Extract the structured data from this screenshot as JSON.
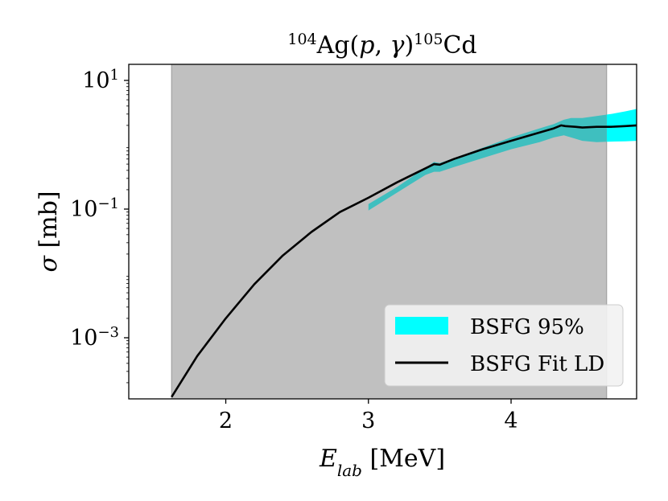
{
  "chart_data": {
    "type": "line",
    "title": {
      "pre_sup": "104",
      "main": "Ag(",
      "p": "p",
      "sep": ", ",
      "gamma": "γ",
      "close": ")",
      "post_sup": "105",
      "end": "Cd"
    },
    "xlabel": {
      "var": "E",
      "sub": "lab",
      "unit": " [MeV]"
    },
    "ylabel": {
      "var": "σ",
      "unit": " [mb]"
    },
    "xlim": [
      1.32,
      4.88
    ],
    "ylim_log10": [
      -3.95,
      1.25
    ],
    "y_scale": "log",
    "x_ticks": [
      {
        "value": 2,
        "label": "2"
      },
      {
        "value": 3,
        "label": "3"
      },
      {
        "value": 4,
        "label": "4"
      }
    ],
    "y_ticks": [
      {
        "exp": 1,
        "base": "10",
        "sup": "1"
      },
      {
        "exp": -1,
        "base": "10",
        "sup": "−1"
      },
      {
        "exp": -3,
        "base": "10",
        "sup": "−3"
      }
    ],
    "shaded_region": {
      "x": [
        1.62,
        4.67
      ],
      "color": "#c0c0c0"
    },
    "series": [
      {
        "name": "BSFG 95%",
        "kind": "band",
        "color": "#00ffff",
        "overlap_color": "#3fbfbf",
        "x": [
          3.0,
          3.2,
          3.4,
          3.46,
          3.5,
          3.6,
          3.8,
          4.0,
          4.2,
          4.3,
          4.37,
          4.42,
          4.5,
          4.6,
          4.7,
          4.8,
          4.88
        ],
        "lower": [
          0.095,
          0.18,
          0.34,
          0.38,
          0.38,
          0.45,
          0.62,
          0.85,
          1.1,
          1.3,
          1.4,
          1.3,
          1.15,
          1.1,
          1.12,
          1.13,
          1.15
        ],
        "upper": [
          0.12,
          0.22,
          0.44,
          0.54,
          0.52,
          0.62,
          0.9,
          1.3,
          1.8,
          2.1,
          2.45,
          2.6,
          2.6,
          2.8,
          3.0,
          3.3,
          3.6
        ]
      },
      {
        "name": "BSFG Fit LD",
        "kind": "line",
        "color": "#000000",
        "x": [
          1.62,
          1.8,
          2.0,
          2.2,
          2.4,
          2.6,
          2.8,
          3.0,
          3.2,
          3.4,
          3.46,
          3.5,
          3.6,
          3.8,
          4.0,
          4.2,
          4.3,
          4.35,
          4.38,
          4.45,
          4.5,
          4.6,
          4.7,
          4.8,
          4.88
        ],
        "y": [
          0.00012,
          0.00052,
          0.002,
          0.0068,
          0.019,
          0.044,
          0.09,
          0.15,
          0.26,
          0.43,
          0.5,
          0.49,
          0.6,
          0.85,
          1.15,
          1.55,
          1.8,
          2.0,
          1.95,
          1.9,
          1.85,
          1.9,
          1.9,
          1.95,
          2.0
        ]
      }
    ],
    "legend": {
      "position": "lower-right",
      "entries": [
        "BSFG 95%",
        "BSFG Fit LD"
      ]
    }
  }
}
